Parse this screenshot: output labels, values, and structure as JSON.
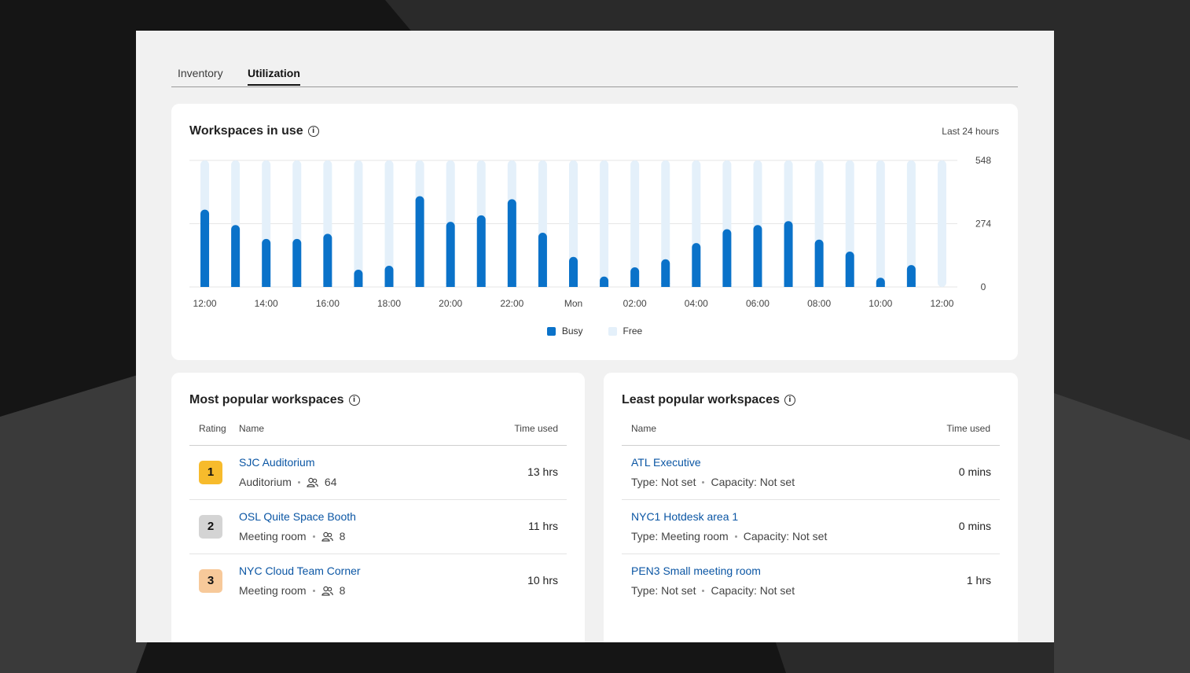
{
  "tabs": [
    {
      "label": "Inventory",
      "active": false
    },
    {
      "label": "Utilization",
      "active": true
    }
  ],
  "usage_card": {
    "title": "Workspaces in use",
    "range": "Last 24 hours",
    "legend": [
      {
        "label": "Busy",
        "color": "#0a72c9"
      },
      {
        "label": "Free",
        "color": "#e4f0fa"
      }
    ]
  },
  "chart_data": {
    "type": "bar",
    "stacked": true,
    "categories": [
      "12:00",
      "13:00",
      "14:00",
      "15:00",
      "16:00",
      "17:00",
      "18:00",
      "19:00",
      "20:00",
      "21:00",
      "22:00",
      "23:00",
      "Mon",
      "01:00",
      "02:00",
      "03:00",
      "04:00",
      "05:00",
      "06:00",
      "07:00",
      "08:00",
      "09:00",
      "10:00",
      "11:00",
      "12:00"
    ],
    "x_tick_labels": [
      "12:00",
      "14:00",
      "16:00",
      "18:00",
      "20:00",
      "22:00",
      "Mon",
      "02:00",
      "04:00",
      "06:00",
      "08:00",
      "10:00",
      "12:00"
    ],
    "series": [
      {
        "name": "Busy",
        "color": "#0a72c9",
        "values": [
          335,
          268,
          208,
          208,
          230,
          75,
          92,
          393,
          282,
          310,
          380,
          235,
          130,
          45,
          85,
          120,
          190,
          250,
          268,
          285,
          205,
          153,
          40,
          95,
          0
        ]
      },
      {
        "name": "Free",
        "color": "#e4f0fa",
        "values": [
          213,
          280,
          340,
          340,
          318,
          473,
          456,
          155,
          266,
          238,
          168,
          313,
          418,
          503,
          463,
          428,
          358,
          298,
          280,
          263,
          343,
          395,
          508,
          453,
          548
        ]
      }
    ],
    "y_ticks": [
      0,
      274,
      548
    ],
    "ylim": [
      0,
      548
    ],
    "grid": true,
    "legend": "bottom-center"
  },
  "most_popular": {
    "title": "Most popular workspaces",
    "headers": {
      "rating": "Rating",
      "name": "Name",
      "time": "Time used"
    },
    "rows": [
      {
        "rank": "1",
        "rank_color": "#f7bb2c",
        "name": "SJC Auditorium",
        "type": "Auditorium",
        "capacity": "64",
        "time": "13 hrs"
      },
      {
        "rank": "2",
        "rank_color": "#d4d4d4",
        "name": "OSL Quite Space Booth",
        "type": "Meeting room",
        "capacity": "8",
        "time": "11 hrs"
      },
      {
        "rank": "3",
        "rank_color": "#f7c99a",
        "name": "NYC Cloud Team Corner",
        "type": "Meeting room",
        "capacity": "8",
        "time": "10 hrs"
      }
    ]
  },
  "least_popular": {
    "title": "Least popular workspaces",
    "headers": {
      "name": "Name",
      "time": "Time used"
    },
    "rows": [
      {
        "name": "ATL Executive",
        "type": "Type: Not set",
        "capacity": "Capacity: Not set",
        "time": "0 mins"
      },
      {
        "name": "NYC1 Hotdesk area 1",
        "type": "Type: Meeting room",
        "capacity": "Capacity: Not set",
        "time": "0 mins"
      },
      {
        "name": "PEN3 Small meeting room",
        "type": "Type: Not set",
        "capacity": "Capacity: Not set",
        "time": "1 hrs"
      }
    ]
  }
}
